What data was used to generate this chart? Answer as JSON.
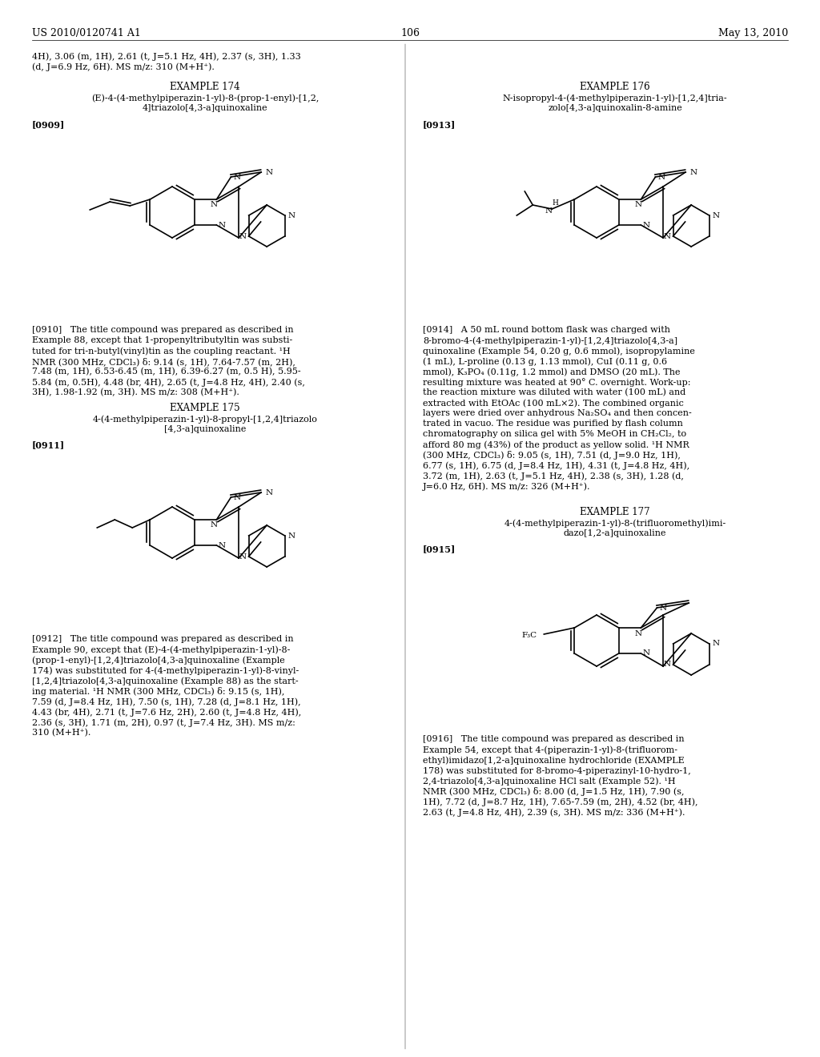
{
  "background_color": "#ffffff",
  "header_left": "US 2010/0120741 A1",
  "header_center": "106",
  "header_right": "May 13, 2010",
  "font_family": "DejaVu Serif"
}
